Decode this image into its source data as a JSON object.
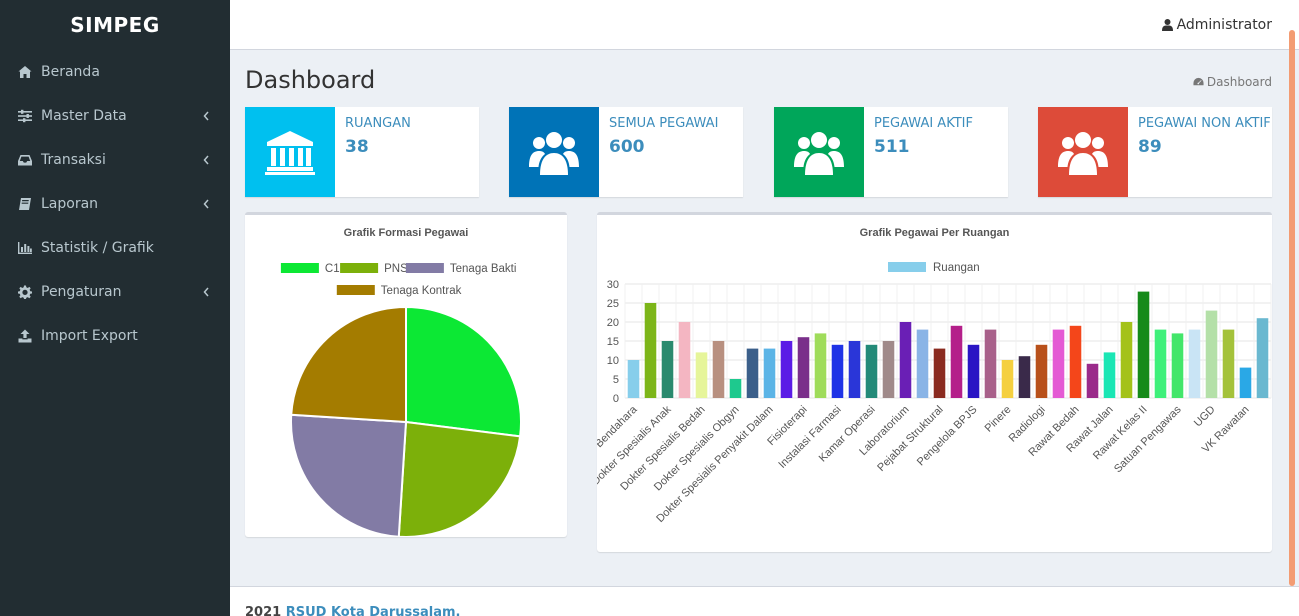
{
  "app": {
    "brand": "SIMPEG"
  },
  "sidebar": {
    "items": [
      {
        "label": "Beranda",
        "icon": "home-icon",
        "submenu": false
      },
      {
        "label": "Master Data",
        "icon": "sliders-icon",
        "submenu": true
      },
      {
        "label": "Transaksi",
        "icon": "inbox-icon",
        "submenu": true
      },
      {
        "label": "Laporan",
        "icon": "book-icon",
        "submenu": true
      },
      {
        "label": "Statistik / Grafik",
        "icon": "bar-chart-icon",
        "submenu": false
      },
      {
        "label": "Pengaturan",
        "icon": "gear-icon",
        "submenu": true
      },
      {
        "label": "Import Export",
        "icon": "upload-icon",
        "submenu": false
      }
    ]
  },
  "header": {
    "user": "Administrator"
  },
  "page": {
    "title": "Dashboard",
    "breadcrumb": "Dashboard"
  },
  "stats": [
    {
      "label": "RUANGAN",
      "value": "38",
      "color": "#00c0ef",
      "icon": "institution-icon"
    },
    {
      "label": "SEMUA PEGAWAI",
      "value": "600",
      "color": "#0073b7",
      "icon": "users-icon"
    },
    {
      "label": "PEGAWAI AKTIF",
      "value": "511",
      "color": "#00a65a",
      "icon": "users-icon"
    },
    {
      "label": "PEGAWAI NON AKTIF",
      "value": "89",
      "color": "#dd4b39",
      "icon": "users-icon"
    }
  ],
  "chart_data": [
    {
      "type": "pie",
      "title": "Grafik Formasi Pegawai",
      "legend_position": "top",
      "categories": [
        "C1",
        "PNS",
        "Tenaga Bakti",
        "Tenaga Kontrak"
      ],
      "values": [
        27,
        24,
        25,
        24
      ],
      "colors": [
        "#0ce834",
        "#7cb00a",
        "#827ba5",
        "#a47c00"
      ]
    },
    {
      "type": "bar",
      "title": "Grafik Pegawai Per Ruangan",
      "legend_position": "top",
      "series": [
        {
          "name": "Ruangan",
          "color": "#87ceeb"
        }
      ],
      "ylim": [
        0,
        30
      ],
      "yticks": [
        0,
        5,
        10,
        15,
        20,
        25,
        30
      ],
      "grid": true,
      "xtick_labels": [
        "Bendahara",
        "Dokter Spesialis Anak",
        "Dokter Spesialis Bedah",
        "Dokter Spesialis Obgyn",
        "Dokter Spesialis Penyakit Dalam",
        "Fisioterapi",
        "Instalasi Farmasi",
        "Kamar Operasi",
        "Laboratorium",
        "Pejabat Struktural",
        "Pengelola BPJS",
        "Pinere",
        "Radiologi",
        "Rawat Bedah",
        "Rawat Jalan",
        "Rawat Kelas II",
        "Satuan Pengawas",
        "UGD",
        "VK Rawatan"
      ],
      "values": [
        10,
        25,
        15,
        20,
        12,
        15,
        5,
        13,
        13,
        15,
        16,
        17,
        14,
        15,
        14,
        15,
        20,
        18,
        13,
        19,
        14,
        18,
        10,
        11,
        14,
        18,
        19,
        9,
        12,
        20,
        28,
        18,
        17,
        18,
        23,
        18,
        8,
        21
      ],
      "colors": [
        "#87ceeb",
        "#7cb518",
        "#2a8a6e",
        "#f4b6c2",
        "#e6f59a",
        "#b89080",
        "#1ec98e",
        "#3b5f8a",
        "#5bb4e6",
        "#5b1ce6",
        "#7a2f8a",
        "#9fdc5a",
        "#1f33e6",
        "#2a36d8",
        "#238a78",
        "#a08a8a",
        "#6a1fb5",
        "#8ab4e6",
        "#8a2a1f",
        "#b41f8a",
        "#2a15c4",
        "#a8608a",
        "#f5d040",
        "#3a2a4a",
        "#b8501a",
        "#e45ad4",
        "#f4461a",
        "#9a2a8a",
        "#1ae6b4",
        "#a4c21a",
        "#168a1a",
        "#3ef07a",
        "#43e66a",
        "#c9e4f5",
        "#b4e0a8",
        "#a4c23a",
        "#2aa8e6",
        "#6ab8d0"
      ]
    }
  ],
  "footer": {
    "year": "2021",
    "org": "RSUD Kota Darussalam."
  }
}
